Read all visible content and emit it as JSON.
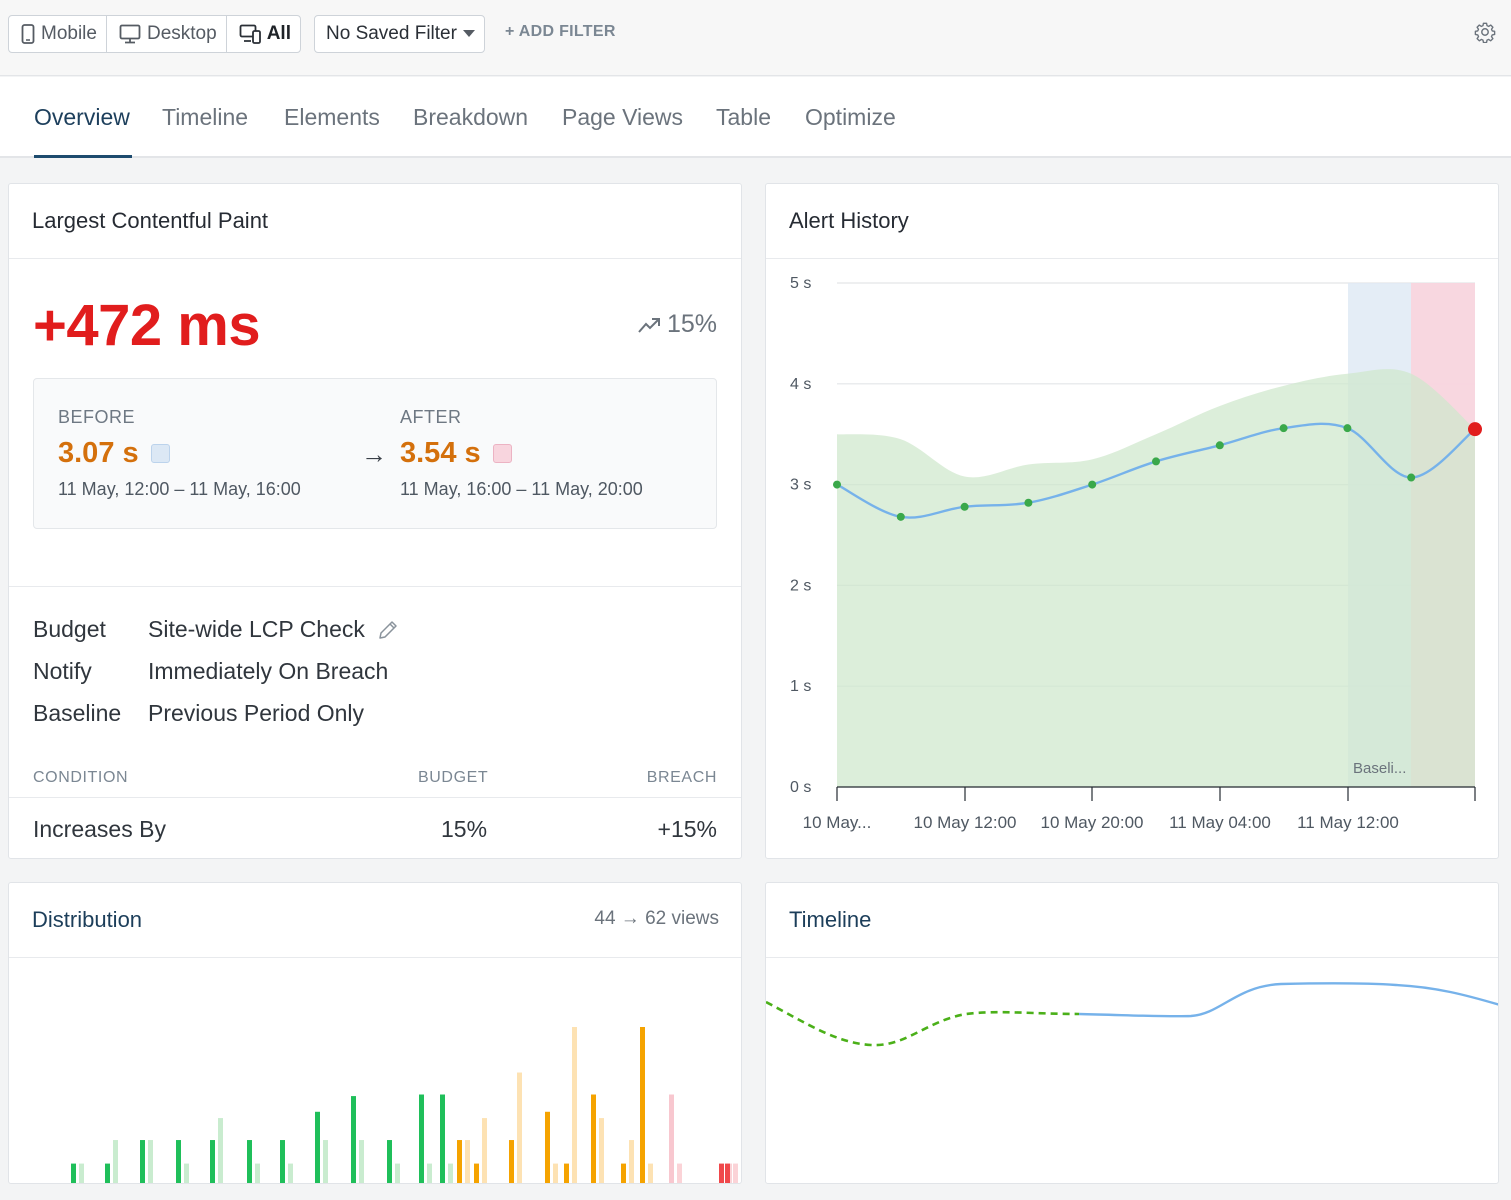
{
  "toolbar": {
    "devices": [
      {
        "label": "Mobile",
        "icon": "mobile-icon",
        "active": false
      },
      {
        "label": "Desktop",
        "icon": "desktop-icon",
        "active": false
      },
      {
        "label": "All",
        "icon": "all-devices-icon",
        "active": true
      }
    ],
    "saved_filter": "No Saved Filter",
    "add_filter": "+ ADD FILTER"
  },
  "tabs": [
    "Overview",
    "Timeline",
    "Elements",
    "Breakdown",
    "Page Views",
    "Table",
    "Optimize"
  ],
  "active_tab": "Overview",
  "lcp_card": {
    "title": "Largest Contentful Paint",
    "delta": "+472 ms",
    "percent": "15%",
    "before": {
      "label": "BEFORE",
      "value": "3.07 s",
      "range": "11 May, 12:00 – 11 May, 16:00",
      "swatch_color": "#dce8f5"
    },
    "after": {
      "label": "AFTER",
      "value": "3.54 s",
      "range": "11 May, 16:00 – 11 May, 20:00",
      "swatch_color": "#f8d5de"
    },
    "arrow": "→",
    "budget_key": "Budget",
    "budget_val": "Site-wide LCP Check",
    "notify_key": "Notify",
    "notify_val": "Immediately On Breach",
    "baseline_key": "Baseline",
    "baseline_val": "Previous Period Only",
    "table": {
      "headers": [
        "CONDITION",
        "BUDGET",
        "BREACH"
      ],
      "row": [
        "Increases By",
        "15%",
        "+15%"
      ]
    }
  },
  "alert_card": {
    "title": "Alert History",
    "baseline_label": "Baseli..."
  },
  "distribution_card": {
    "title": "Distribution",
    "views": "44 → 62 views"
  },
  "timeline_card": {
    "title": "Timeline"
  },
  "colors": {
    "accent": "#1d4b6e",
    "bad": "#e11d1d",
    "value": "#d4700c",
    "good": "#1fbf5a",
    "needs_improvement": "#f5a300",
    "poor": "#f0484b",
    "line": "#76b2ea",
    "area": "#dcefdb"
  },
  "chart_data": [
    {
      "type": "line",
      "title": "Alert History",
      "ylabel": "",
      "xlabel": "",
      "yticks": [
        "0 s",
        "1 s",
        "2 s",
        "3 s",
        "4 s",
        "5 s"
      ],
      "ylim": [
        0,
        5
      ],
      "xticks": [
        "10 May...",
        "10 May 12:00",
        "10 May 20:00",
        "11 May 04:00",
        "11 May 12:00"
      ],
      "series": [
        {
          "values": [
            3.0,
            2.68,
            2.78,
            2.82,
            3.0,
            3.23,
            3.39,
            3.56,
            3.56,
            3.07,
            3.55
          ]
        },
        {
          "values": [
            3.5,
            3.45,
            3.08,
            3.2,
            3.25,
            3.5,
            3.78,
            3.98,
            4.1,
            4.1,
            3.55
          ]
        }
      ],
      "grid": true
    },
    {
      "type": "bar",
      "title": "Distribution",
      "series": [
        {
          "values": [
            0.13,
            0.13,
            0.28,
            0.28,
            0.28,
            0.28,
            0.28,
            0.46,
            0.56,
            0.28,
            0.57,
            0.57,
            0.28,
            0.13,
            0.28,
            0.46,
            0.13,
            0.57,
            0.13,
            1.0,
            0.57,
            0.13,
            0.13
          ]
        },
        {
          "values": [
            0.13,
            0.28,
            0.28,
            0.13,
            0.42,
            0.13,
            0.13,
            0.28,
            0.28,
            0.13,
            0.13,
            0.13,
            0.28,
            0.42,
            0.71,
            0.13,
            1.0,
            0.42,
            0.28,
            0.13,
            0.13,
            0.13,
            0.13
          ]
        }
      ]
    }
  ]
}
